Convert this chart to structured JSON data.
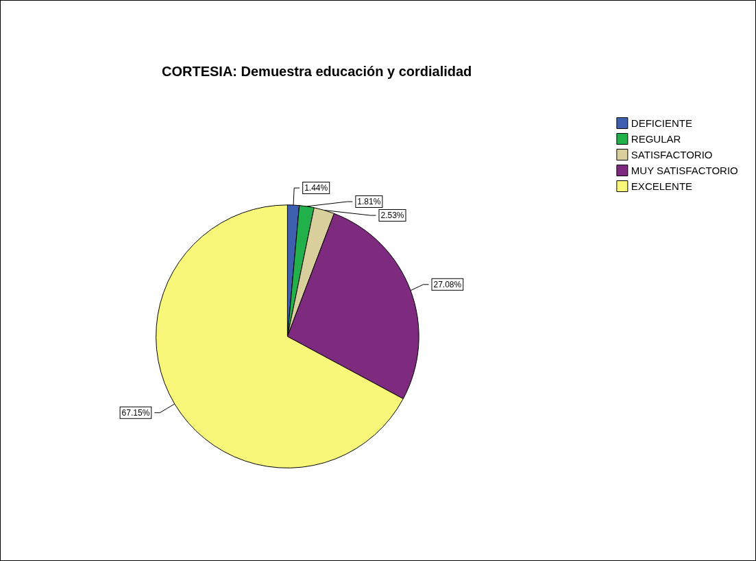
{
  "chart_data": {
    "type": "pie",
    "title": "CORTESIA: Demuestra educación y cordialidad",
    "categories": [
      "DEFICIENTE",
      "REGULAR",
      "SATISFACTORIO",
      "MUY SATISFACTORIO",
      "EXCELENTE"
    ],
    "values": [
      1.44,
      1.81,
      2.53,
      27.08,
      67.15
    ],
    "colors": [
      "#3f5fb0",
      "#22b04a",
      "#d8cf9c",
      "#7e2a7e",
      "#f9f779"
    ],
    "value_labels": [
      "1.44%",
      "1.81%",
      "2.53%",
      "27.08%",
      "67.15%"
    ],
    "legend": "top right"
  }
}
